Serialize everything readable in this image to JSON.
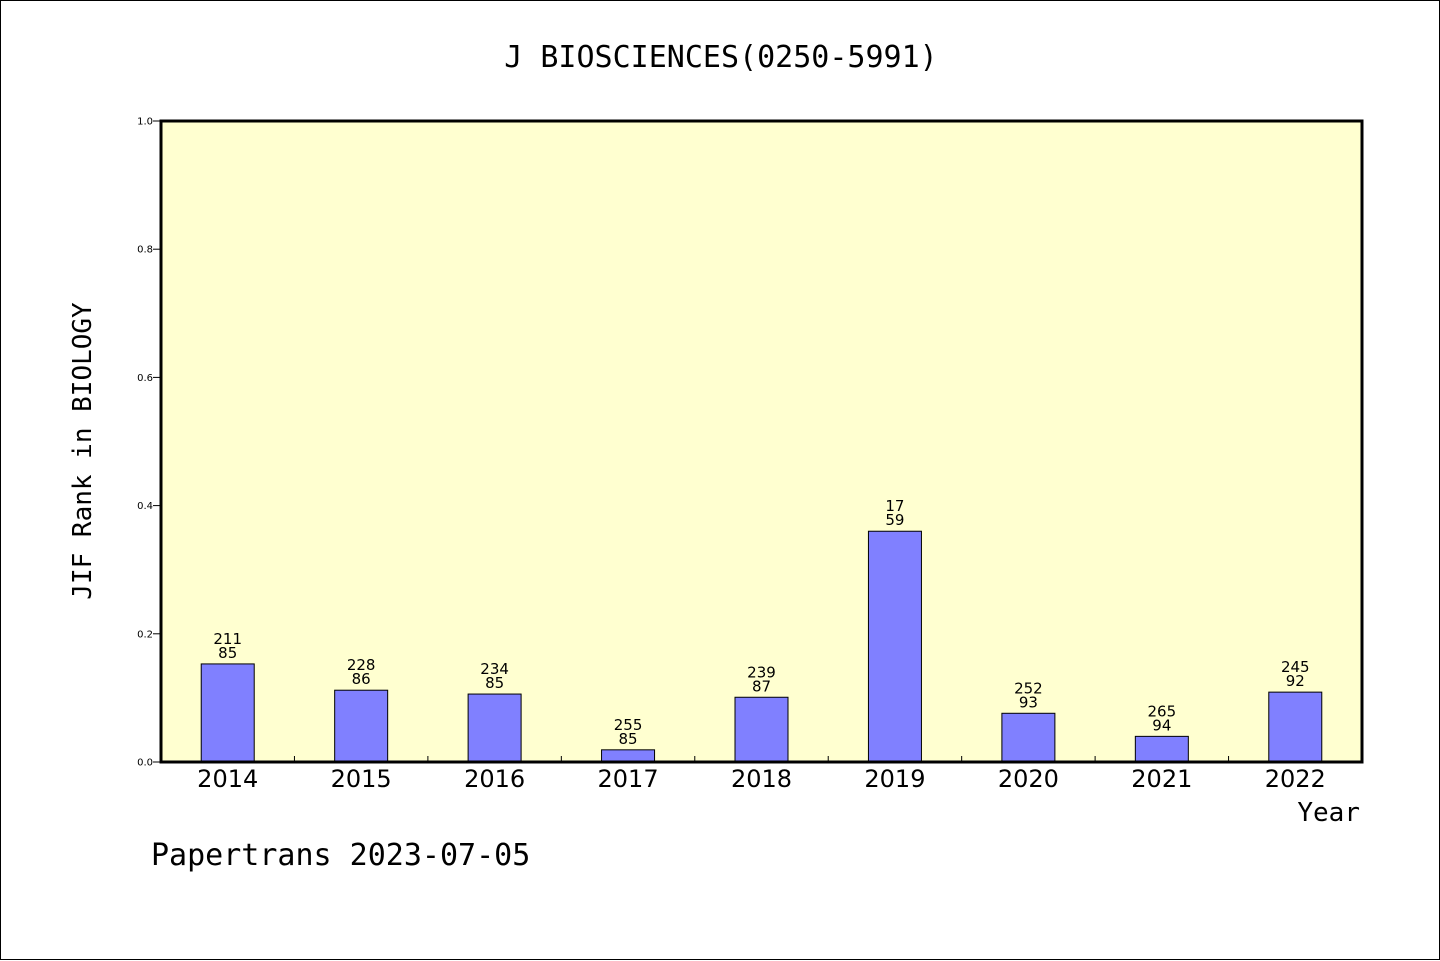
{
  "chart_data": {
    "type": "bar",
    "title": "J BIOSCIENCES(0250-5991)",
    "xlabel": "Year",
    "ylabel": "JIF Rank in BIOLOGY",
    "ylim": [
      0,
      1.0
    ],
    "yticks": [
      "0.0",
      "0.2",
      "0.4",
      "0.6",
      "0.8",
      "1.0"
    ],
    "grid": false,
    "categories": [
      "2014",
      "2015",
      "2016",
      "2017",
      "2018",
      "2019",
      "2020",
      "2021",
      "2022"
    ],
    "values": [
      0.153,
      0.112,
      0.106,
      0.019,
      0.101,
      0.36,
      0.076,
      0.04,
      0.109
    ],
    "bar_labels": [
      [
        "211",
        "85"
      ],
      [
        "228",
        "86"
      ],
      [
        "234",
        "85"
      ],
      [
        "255",
        "85"
      ],
      [
        "239",
        "87"
      ],
      [
        "17",
        "59"
      ],
      [
        "252",
        "93"
      ],
      [
        "265",
        "94"
      ],
      [
        "245",
        "92"
      ]
    ],
    "colors": {
      "plot_background": "#ffffd0",
      "bar_fill": "#8080ff",
      "bar_stroke": "#000000"
    }
  },
  "footer": "Papertrans 2023-07-05"
}
